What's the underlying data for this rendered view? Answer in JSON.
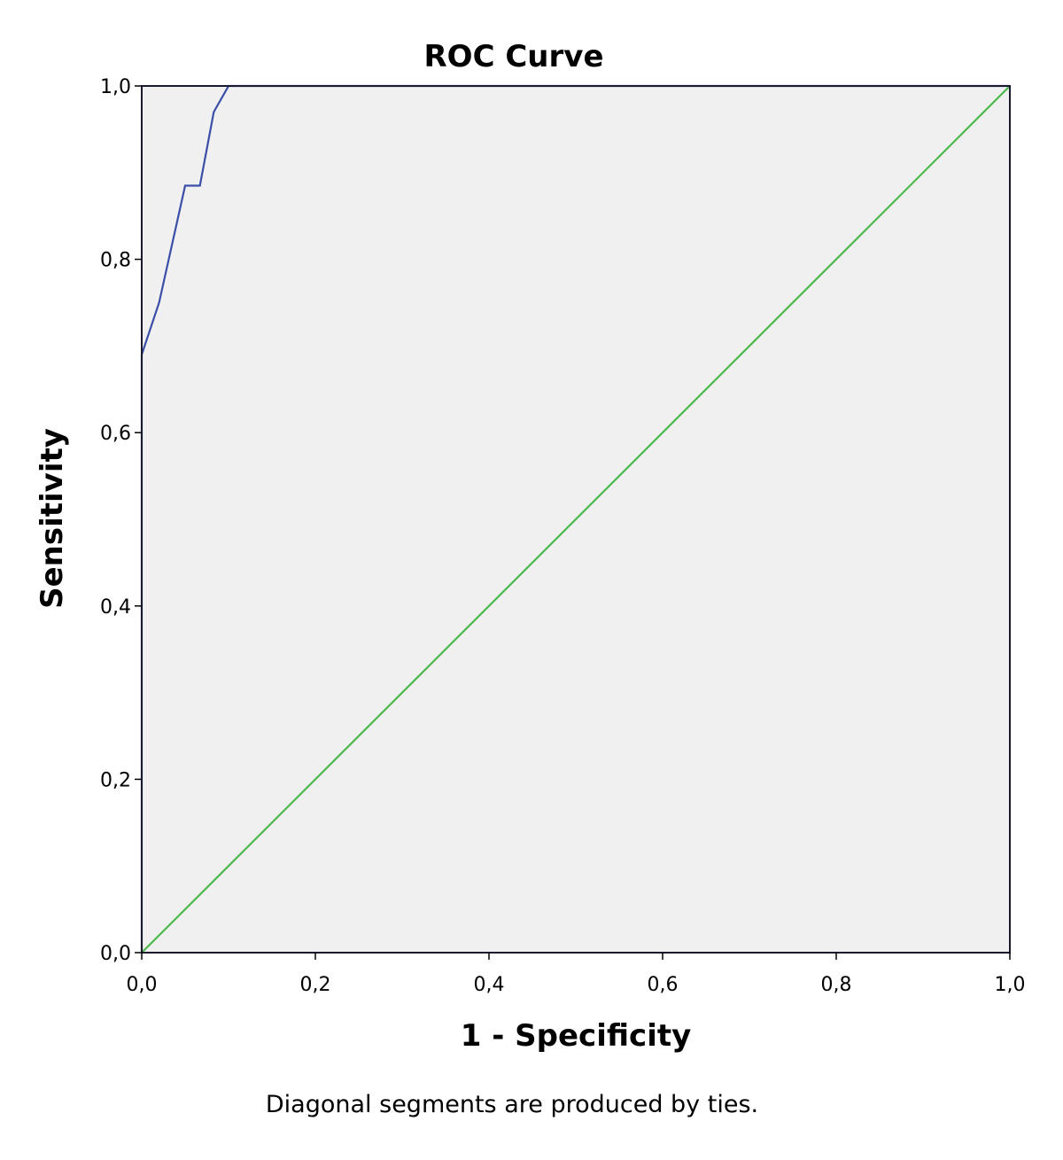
{
  "chart_data": {
    "type": "line",
    "title": "ROC Curve",
    "xlabel": "1 - Specificity",
    "ylabel": "Sensitivity",
    "footnote": "Diagonal segments are produced by ties.",
    "xlim": [
      0,
      1
    ],
    "ylim": [
      0,
      1
    ],
    "x_ticks": [
      "0,0",
      "0,2",
      "0,4",
      "0,6",
      "0,8",
      "1,0"
    ],
    "y_ticks": [
      "0,0",
      "0,2",
      "0,4",
      "0,6",
      "0,8",
      "1,0"
    ],
    "grid": false,
    "background_color": "#f0f0f0",
    "series": [
      {
        "color": "#3b4fa8",
        "x": [
          0.0,
          0.0,
          0.02,
          0.05,
          0.067,
          0.083,
          0.1,
          1.0
        ],
        "y": [
          0.0,
          0.69,
          0.75,
          0.885,
          0.885,
          0.97,
          1.0,
          1.0
        ]
      },
      {
        "color": "#4cb84c",
        "x": [
          0.0,
          1.0
        ],
        "y": [
          0.0,
          1.0
        ]
      }
    ]
  }
}
